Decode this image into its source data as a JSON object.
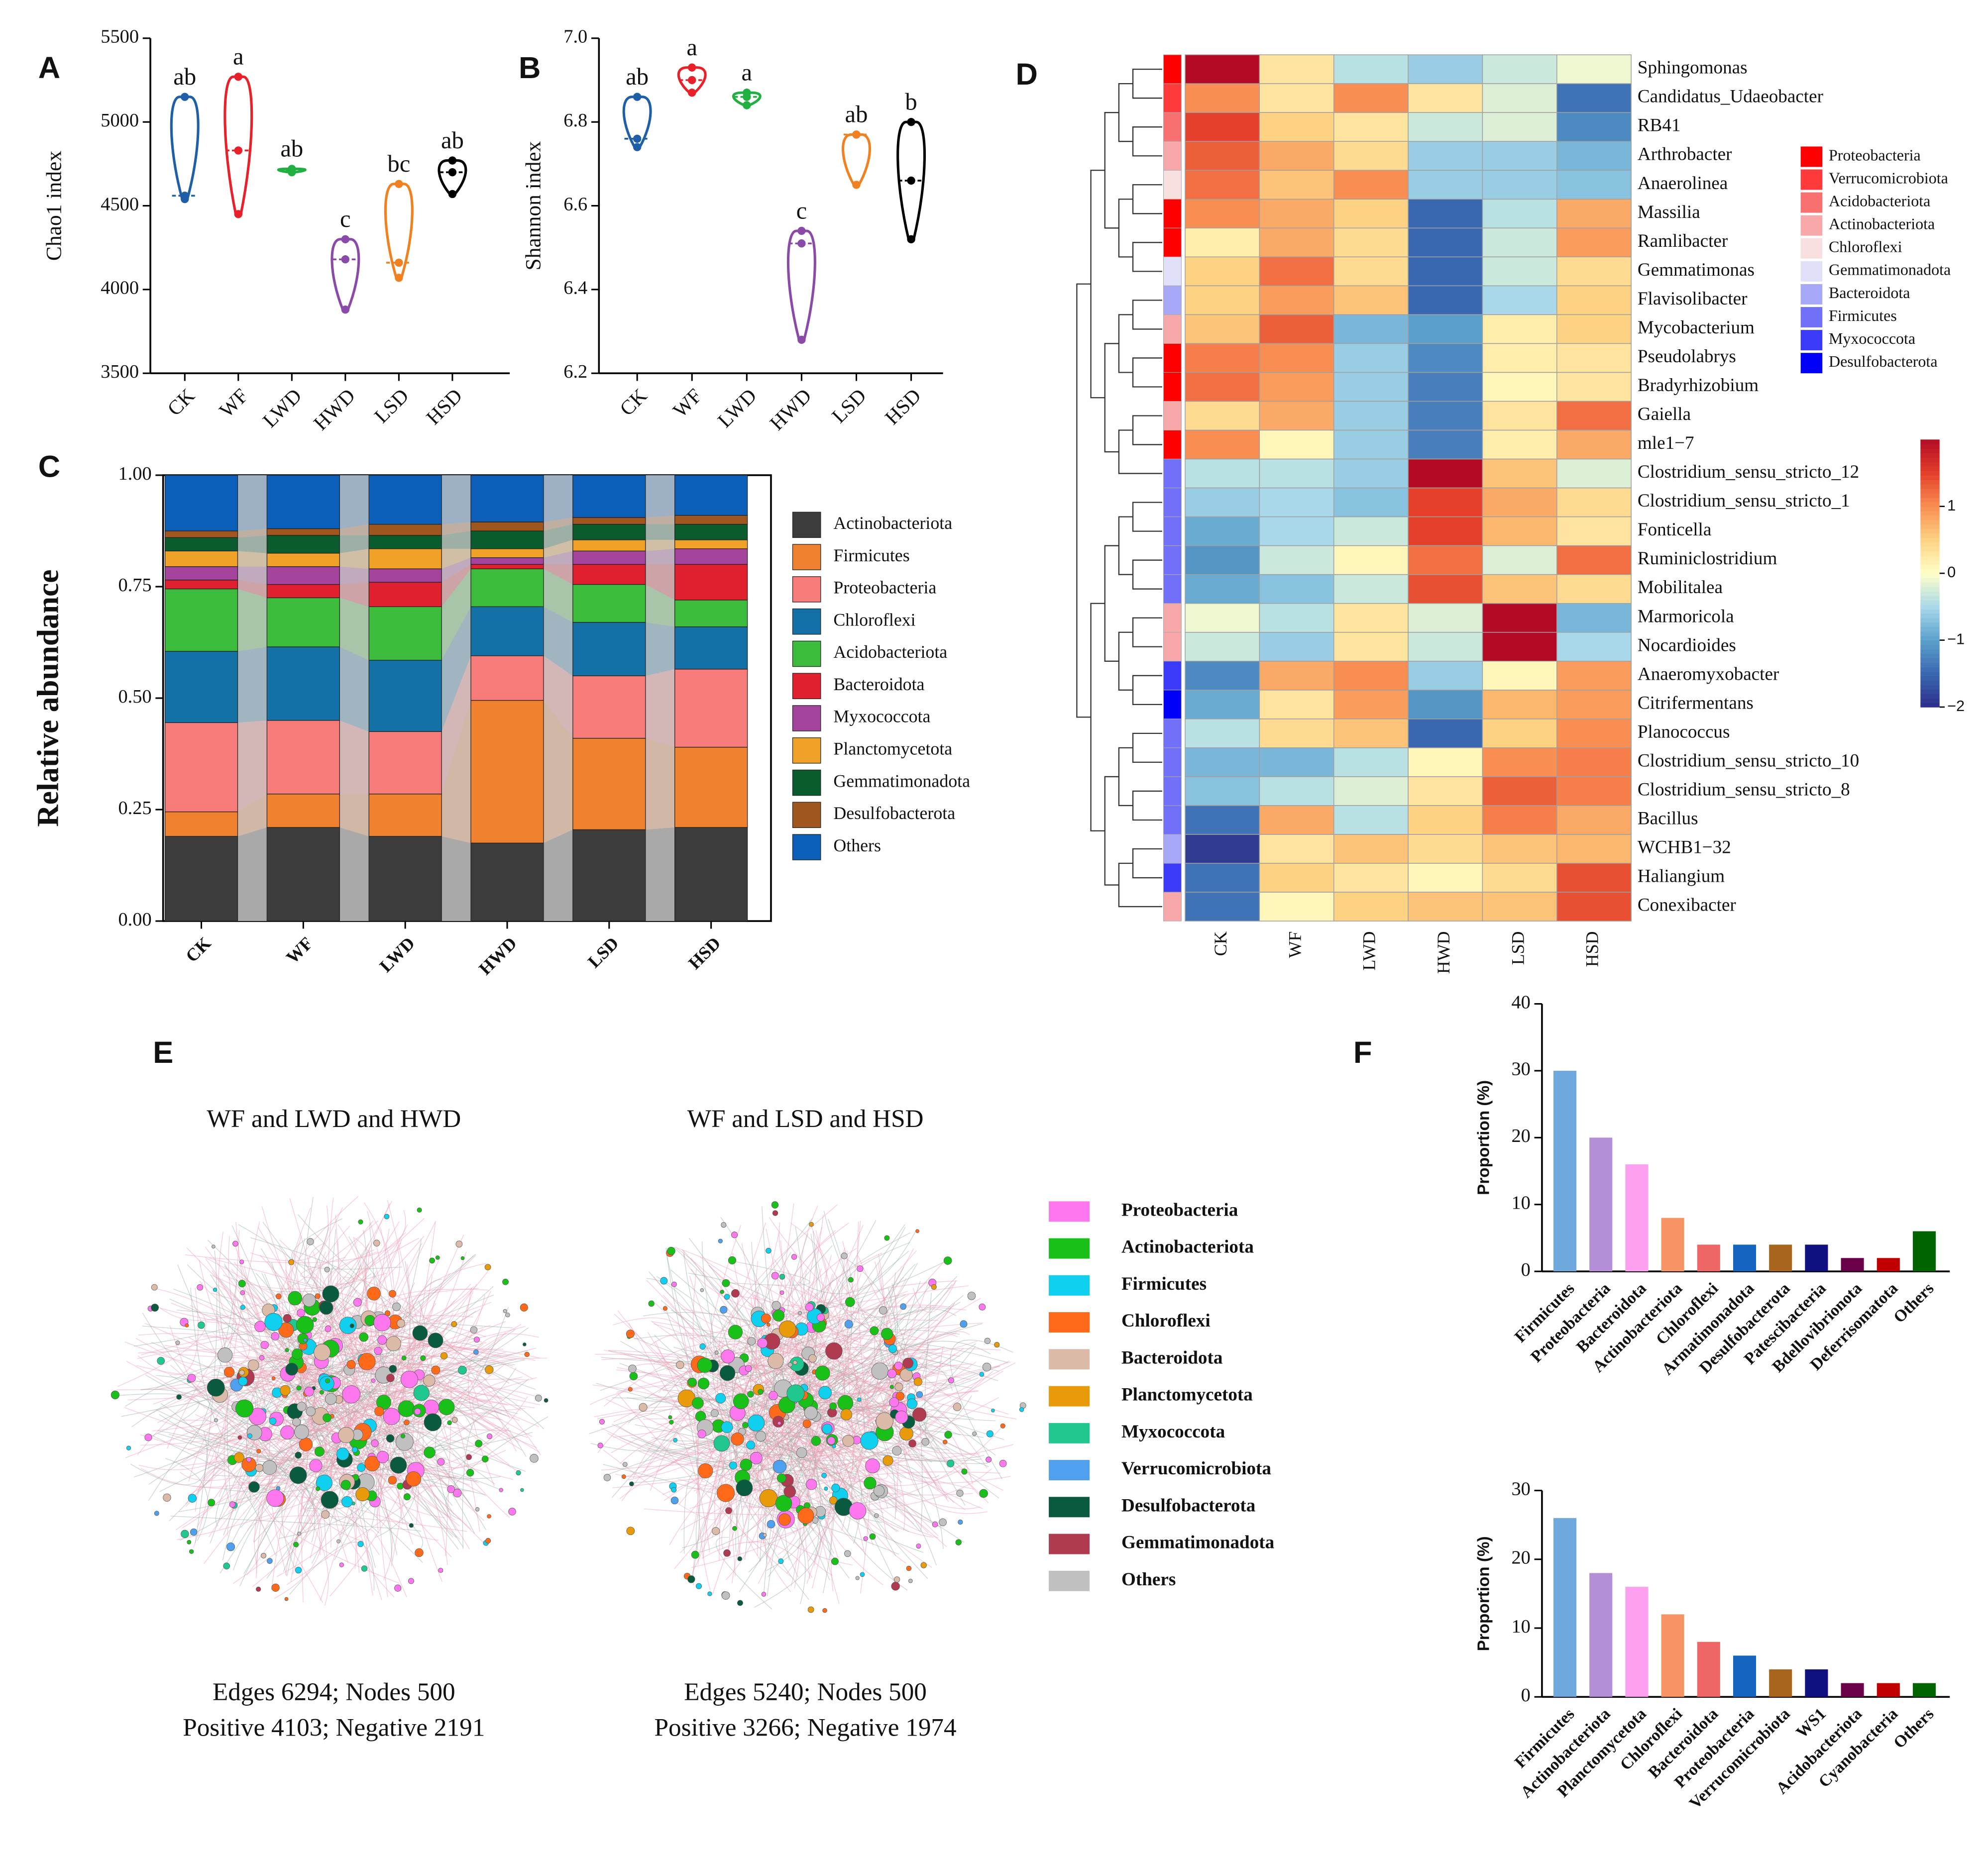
{
  "chart_data": [
    {
      "type": "violin",
      "panel": "A",
      "ylabel": "Chao1 index",
      "categories": [
        "CK",
        "WF",
        "LWD",
        "HWD",
        "LSD",
        "HSD"
      ],
      "points": [
        [
          5150,
          4560,
          4540
        ],
        [
          5270,
          4830,
          4450
        ],
        [
          4720,
          4710,
          4700
        ],
        [
          4300,
          4180,
          3880
        ],
        [
          4630,
          4160,
          4070
        ],
        [
          4770,
          4700,
          4570
        ]
      ],
      "letters": [
        "ab",
        "a",
        "ab",
        "c",
        "bc",
        "ab"
      ],
      "colors": [
        "#1f5fa8",
        "#e8202a",
        "#20b040",
        "#8a4aa8",
        "#f08020",
        "#000000"
      ],
      "ylim": [
        3500,
        5500
      ],
      "yticks": [
        3500,
        4000,
        4500,
        5000,
        5500
      ]
    },
    {
      "type": "violin",
      "panel": "B",
      "ylabel": "Shannon index",
      "categories": [
        "CK",
        "WF",
        "LWD",
        "HWD",
        "LSD",
        "HSD"
      ],
      "points": [
        [
          6.86,
          6.76,
          6.74
        ],
        [
          6.93,
          6.9,
          6.87
        ],
        [
          6.87,
          6.86,
          6.84
        ],
        [
          6.54,
          6.51,
          6.28
        ],
        [
          6.77,
          6.77,
          6.65
        ],
        [
          6.8,
          6.66,
          6.52
        ]
      ],
      "letters": [
        "ab",
        "a",
        "a",
        "c",
        "ab",
        "b"
      ],
      "colors": [
        "#1f5fa8",
        "#e8202a",
        "#20b040",
        "#8a4aa8",
        "#f08020",
        "#000000"
      ],
      "ylim": [
        6.2,
        7
      ],
      "yticks": [
        6.2,
        6.4,
        6.6,
        6.8,
        {
          "value": 7,
          "label": "7.0"
        }
      ]
    },
    {
      "type": "stacked_bar",
      "panel": "C",
      "ylabel": "Relative abundance",
      "categories": [
        "CK",
        "WF",
        "LWD",
        "HWD",
        "LSD",
        "HSD"
      ],
      "ylim": [
        0,
        1
      ],
      "yticks": [
        {
          "value": 0,
          "label": "0.00"
        },
        {
          "value": 0.25,
          "label": "0.25"
        },
        {
          "value": 0.5,
          "label": "0.50"
        },
        {
          "value": 0.75,
          "label": "0.75"
        },
        {
          "value": 1,
          "label": "1.00"
        }
      ],
      "series": [
        {
          "name": "Actinobacteriota",
          "color": "#3c3c3c",
          "values": [
            0.19,
            0.21,
            0.19,
            0.175,
            0.205,
            0.21
          ]
        },
        {
          "name": "Firmicutes",
          "color": "#f0812e",
          "values": [
            0.055,
            0.075,
            0.095,
            0.32,
            0.205,
            0.18
          ]
        },
        {
          "name": "Proteobacteria",
          "color": "#f77b78",
          "values": [
            0.2,
            0.165,
            0.14,
            0.1,
            0.14,
            0.175
          ]
        },
        {
          "name": "Chloroflexi",
          "color": "#1471a6",
          "values": [
            0.16,
            0.165,
            0.16,
            0.11,
            0.12,
            0.095
          ]
        },
        {
          "name": "Acidobacteriota",
          "color": "#3dbb3d",
          "values": [
            0.14,
            0.11,
            0.12,
            0.085,
            0.085,
            0.06
          ]
        },
        {
          "name": "Bacteroidota",
          "color": "#e0202e",
          "values": [
            0.02,
            0.03,
            0.055,
            0.01,
            0.045,
            0.08
          ]
        },
        {
          "name": "Myxococcota",
          "color": "#a5449d",
          "values": [
            0.03,
            0.04,
            0.03,
            0.015,
            0.03,
            0.035
          ]
        },
        {
          "name": "Planctomycetota",
          "color": "#f0a128",
          "values": [
            0.035,
            0.03,
            0.045,
            0.02,
            0.025,
            0.02
          ]
        },
        {
          "name": "Gemmatimonadota",
          "color": "#0a5c2e",
          "values": [
            0.03,
            0.04,
            0.03,
            0.04,
            0.035,
            0.035
          ]
        },
        {
          "name": "Desulfobacterota",
          "color": "#a0561f",
          "values": [
            0.015,
            0.015,
            0.025,
            0.02,
            0.015,
            0.02
          ]
        },
        {
          "name": "Others",
          "color": "#0b5fb8",
          "values": [
            0.125,
            0.12,
            0.11,
            0.105,
            0.095,
            0.09
          ]
        }
      ]
    },
    {
      "type": "heatmap",
      "panel": "D",
      "categories": [
        "CK",
        "WF",
        "LWD",
        "HWD",
        "LSD",
        "HSD"
      ],
      "rows": [
        "Sphingomonas",
        "Candidatus_Udaeobacter",
        "RB41",
        "Arthrobacter",
        "Anaerolinea",
        "Massilia",
        "Ramlibacter",
        "Gemmatimonas",
        "Flavisolibacter",
        "Mycobacterium",
        "Pseudolabrys",
        "Bradyrhizobium",
        "Gaiella",
        "mle1−7",
        "Clostridium_sensu_stricto_12",
        "Clostridium_sensu_stricto_1",
        "Fonticella",
        "Ruminiclostridium",
        "Mobilitalea",
        "Marmoricola",
        "Nocardioides",
        "Anaeromyxobacter",
        "Citrifermentans",
        "Planococcus",
        "Clostridium_sensu_stricto_10",
        "Clostridium_sensu_stricto_8",
        "Bacillus",
        "WCHB1−32",
        "Haliangium",
        "Conexibacter"
      ],
      "values": [
        [
          2.0,
          0.3,
          -0.4,
          -0.6,
          -0.3,
          -0.1
        ],
        [
          1.0,
          0.3,
          1.0,
          0.3,
          -0.2,
          -1.4
        ],
        [
          1.5,
          0.5,
          0.3,
          -0.3,
          -0.2,
          -1.2
        ],
        [
          1.3,
          0.8,
          0.4,
          -0.6,
          -0.6,
          -0.8
        ],
        [
          1.2,
          0.6,
          1.0,
          -0.6,
          -0.6,
          -0.7
        ],
        [
          1.0,
          0.8,
          0.5,
          -1.5,
          -0.4,
          0.8
        ],
        [
          0.2,
          0.8,
          0.4,
          -1.5,
          -0.3,
          0.9
        ],
        [
          0.5,
          1.2,
          0.4,
          -1.5,
          -0.3,
          0.4
        ],
        [
          0.5,
          0.9,
          0.6,
          -1.5,
          -0.5,
          0.5
        ],
        [
          0.6,
          1.3,
          -0.8,
          -1.0,
          0.2,
          0.5
        ],
        [
          1.1,
          1.0,
          -0.6,
          -1.2,
          0.2,
          0.3
        ],
        [
          1.2,
          0.9,
          -0.6,
          -1.3,
          0.1,
          0.3
        ],
        [
          0.4,
          0.8,
          -0.6,
          -1.3,
          0.3,
          1.2
        ],
        [
          1.0,
          0.1,
          -0.6,
          -1.3,
          0.2,
          0.8
        ],
        [
          -0.4,
          -0.4,
          -0.6,
          2.0,
          0.6,
          -0.2
        ],
        [
          -0.6,
          -0.5,
          -0.7,
          1.5,
          0.8,
          0.4
        ],
        [
          -0.9,
          -0.5,
          -0.3,
          1.5,
          0.7,
          0.3
        ],
        [
          -1.1,
          -0.3,
          0.1,
          1.2,
          -0.2,
          1.2
        ],
        [
          -0.9,
          -0.7,
          -0.3,
          1.4,
          0.6,
          0.4
        ],
        [
          -0.1,
          -0.4,
          0.3,
          -0.2,
          2.0,
          -0.8
        ],
        [
          -0.3,
          -0.6,
          0.3,
          -0.3,
          2.0,
          -0.5
        ],
        [
          -1.2,
          0.8,
          1.0,
          -0.6,
          0.1,
          0.9
        ],
        [
          -0.9,
          0.3,
          0.9,
          -1.1,
          0.7,
          0.9
        ],
        [
          -0.4,
          0.4,
          0.6,
          -1.5,
          0.5,
          1.0
        ],
        [
          -0.8,
          -0.8,
          -0.4,
          0.1,
          1.0,
          1.1
        ],
        [
          -0.7,
          -0.4,
          -0.2,
          0.3,
          1.3,
          1.1
        ],
        [
          -1.4,
          0.8,
          -0.4,
          0.5,
          1.1,
          0.8
        ],
        [
          -1.9,
          0.3,
          0.6,
          0.4,
          0.6,
          0.7
        ],
        [
          -1.4,
          0.5,
          0.3,
          0.1,
          0.4,
          1.4
        ],
        [
          -1.4,
          0.1,
          0.5,
          0.6,
          0.6,
          1.4
        ]
      ],
      "groups": [
        {
          "name": "Proteobacteria",
          "color": "#ff0000"
        },
        {
          "name": "Verrucomicrobiota",
          "color": "#ff3a3a"
        },
        {
          "name": "Acidobacteriota",
          "color": "#f87070"
        },
        {
          "name": "Actinobacteriota",
          "color": "#f8a8a8"
        },
        {
          "name": "Chloroflexi",
          "color": "#f8e0e0"
        },
        {
          "name": "Gemmatimonadota",
          "color": "#e0e0f8"
        },
        {
          "name": "Bacteroidota",
          "color": "#a8a8f8"
        },
        {
          "name": "Firmicutes",
          "color": "#7070f8"
        },
        {
          "name": "Myxococcota",
          "color": "#3a3af8"
        },
        {
          "name": "Desulfobacterota",
          "color": "#0000f8"
        }
      ],
      "row_group": [
        0,
        1,
        2,
        3,
        4,
        0,
        0,
        5,
        6,
        3,
        0,
        0,
        3,
        0,
        7,
        7,
        7,
        7,
        7,
        3,
        3,
        8,
        9,
        7,
        7,
        7,
        7,
        6,
        8,
        3
      ],
      "zlim": [
        -2,
        2
      ],
      "zticks": [
        {
          "value": -2,
          "label": "−2"
        },
        {
          "value": -1,
          "label": "−1"
        },
        0,
        1
      ]
    },
    {
      "type": "network",
      "panel": "E",
      "networks": [
        {
          "title": "WF and LWD and HWD",
          "summary": [
            "Edges 6294; Nodes 500",
            "Positive 4103; Negative 2191"
          ]
        },
        {
          "title": "WF and LSD and HSD",
          "summary": [
            "Edges 5240; Nodes 500",
            "Positive 3266; Negative 1974"
          ]
        }
      ],
      "legend": [
        {
          "name": "Proteobacteria",
          "color": "#ff77ee"
        },
        {
          "name": "Actinobacteriota",
          "color": "#18c018"
        },
        {
          "name": "Firmicutes",
          "color": "#10d0f0"
        },
        {
          "name": "Chloroflexi",
          "color": "#ff6a1a"
        },
        {
          "name": "Bacteroidota",
          "color": "#dcbaa8"
        },
        {
          "name": "Planctomycetota",
          "color": "#e89a08"
        },
        {
          "name": "Myxococcota",
          "color": "#20c890"
        },
        {
          "name": "Verrucomicrobiota",
          "color": "#50a0f0"
        },
        {
          "name": "Desulfobacterota",
          "color": "#0a5a40"
        },
        {
          "name": "Gemmatimonadota",
          "color": "#b03a50"
        },
        {
          "name": "Others",
          "color": "#c0c0c0"
        }
      ]
    },
    {
      "type": "bar",
      "panel": "F",
      "ylabel": "Proportion (%)",
      "categories": [
        "Firmicutes",
        "Proteobacteria",
        "Bacteroidota",
        "Actinobacteriota",
        "Chloroflexi",
        "Armatimonadota",
        "Desulfobacterota",
        "Patescibacteria",
        "Bdellovibrionota",
        "Deferrisomatota",
        "Others"
      ],
      "values": [
        30,
        20,
        16,
        8,
        4,
        4,
        4,
        4,
        2,
        2,
        6
      ],
      "colors": [
        "#6fa8dc",
        "#b48fd8",
        "#fda0f0",
        "#f79466",
        "#ee6666",
        "#1565c0",
        "#a8651e",
        "#101080",
        "#6a0048",
        "#c00000",
        "#006400"
      ],
      "ylim": [
        0,
        40
      ],
      "yticks": [
        0,
        10,
        20,
        30,
        40
      ]
    },
    {
      "type": "bar",
      "ylabel": "Proportion (%)",
      "categories": [
        "Firmicutes",
        "Actinobacteriota",
        "Planctomycetota",
        "Chloroflexi",
        "Bacteroidota",
        "Proteobacteria",
        "Verrucomicrobiota",
        "WS1",
        "Acidobacteriota",
        "Cyanobacteria",
        "Others"
      ],
      "values": [
        26,
        18,
        16,
        12,
        8,
        6,
        4,
        4,
        2,
        2,
        2
      ],
      "colors": [
        "#6fa8dc",
        "#b48fd8",
        "#fda0f0",
        "#f79466",
        "#ee6666",
        "#1565c0",
        "#a8651e",
        "#101080",
        "#6a0048",
        "#c00000",
        "#006400"
      ],
      "ylim": [
        0,
        30
      ],
      "yticks": [
        0,
        10,
        20,
        30
      ]
    }
  ]
}
